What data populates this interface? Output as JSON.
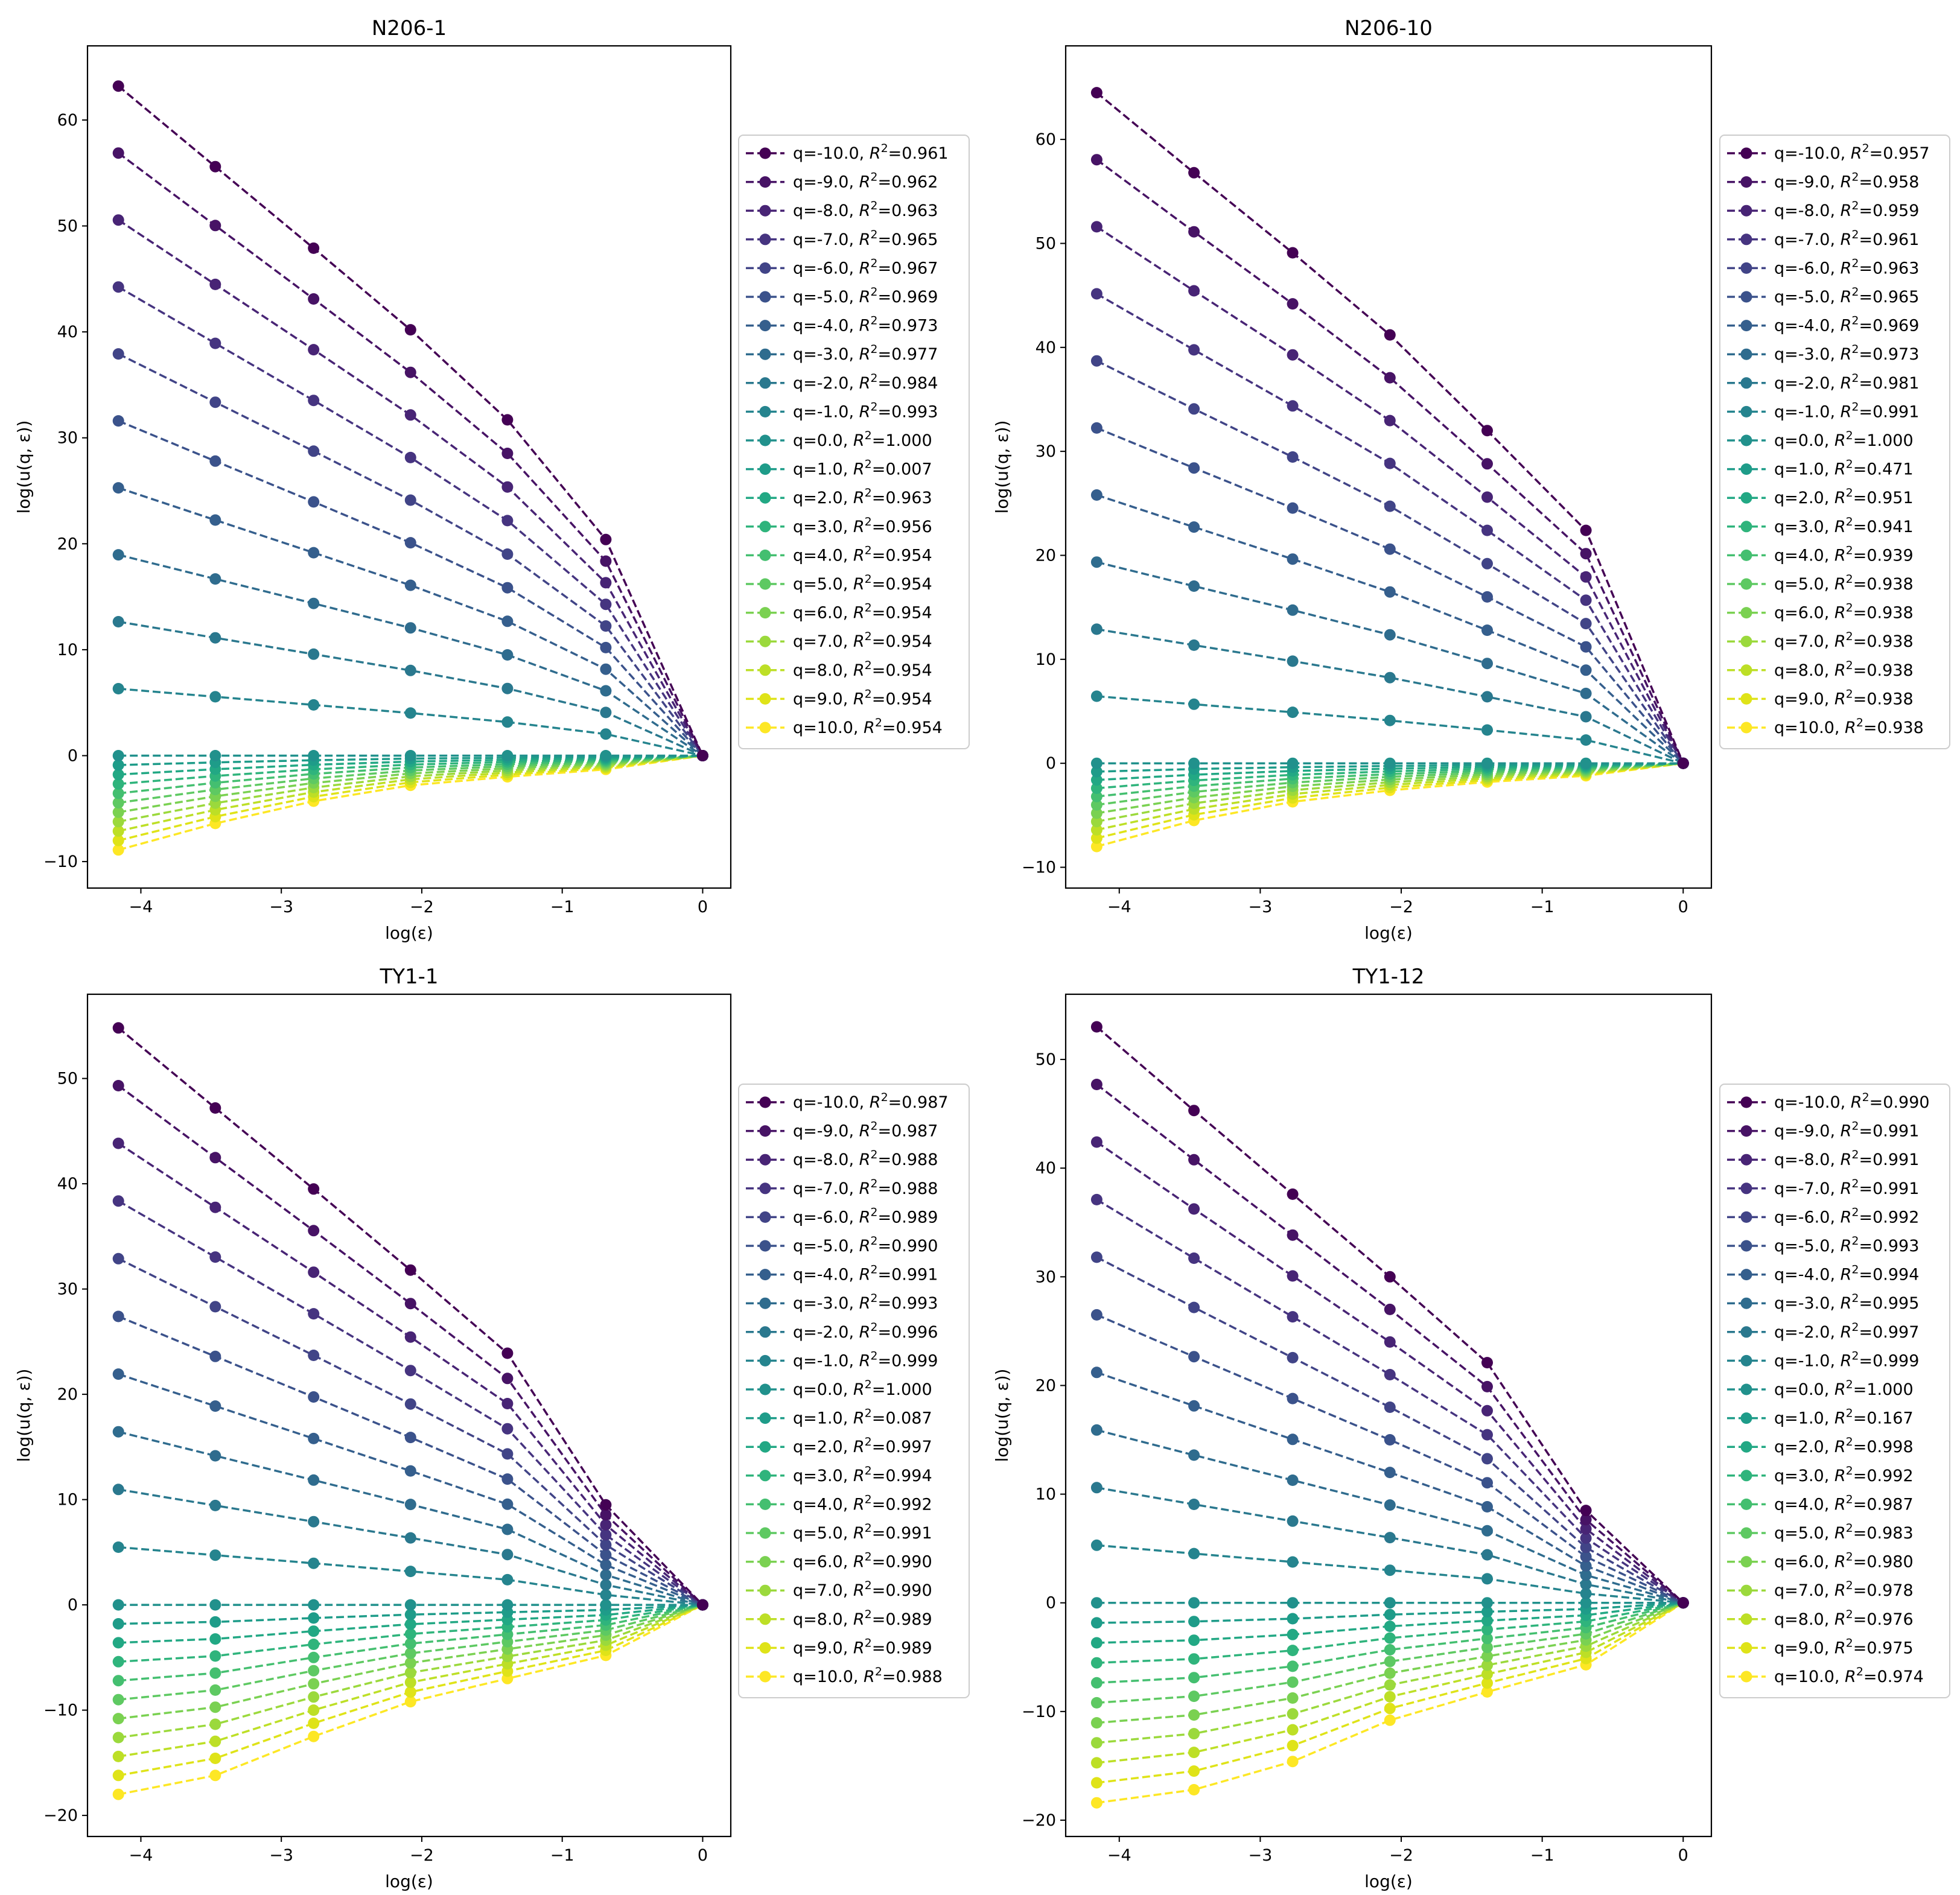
{
  "figure": {
    "description_free": true,
    "x": [
      -4.16,
      -3.47,
      -2.77,
      -2.08,
      -1.39,
      -0.69,
      0.0
    ],
    "q": [
      -10.0,
      -9.0,
      -8.0,
      -7.0,
      -6.0,
      -5.0,
      -4.0,
      -3.0,
      -2.0,
      -1.0,
      0.0,
      1.0,
      2.0,
      3.0,
      4.0,
      5.0,
      6.0,
      7.0,
      8.0,
      9.0,
      10.0
    ],
    "xlabel": "log(ε)",
    "ylabel": "log(u(q, ε))",
    "xticks": [
      -4,
      -3,
      -2,
      -1,
      0
    ],
    "viridis": [
      "#440154",
      "#471365",
      "#482475",
      "#463480",
      "#414487",
      "#3b528b",
      "#355f8d",
      "#2f6c8e",
      "#2a788e",
      "#25848e",
      "#21918c",
      "#1e9c89",
      "#22a884",
      "#2fb47c",
      "#44bf70",
      "#5ec962",
      "#7ad151",
      "#9bd93c",
      "#bddf26",
      "#dfe318",
      "#fde725"
    ]
  },
  "chart_data": [
    {
      "type": "line",
      "title": "N206-1",
      "xlabel": "log(ε)",
      "ylabel": "log(u(q, ε))",
      "xlim": [
        -4.38,
        0.2
      ],
      "ylim": [
        -12.5,
        67.0
      ],
      "yticks": [
        -10,
        0,
        10,
        20,
        30,
        40,
        50,
        60
      ],
      "x": [
        -4.16,
        -3.47,
        -2.77,
        -2.08,
        -1.39,
        -0.69,
        0.0
      ],
      "first_series": {
        "q": -10.0,
        "y": [
          63.2,
          55.6,
          47.9,
          40.2,
          31.7,
          20.4,
          0
        ]
      },
      "last_series": {
        "q": 10.0,
        "y": [
          -8.9,
          -6.4,
          -4.3,
          -2.8,
          -2.0,
          -1.3,
          0
        ]
      },
      "r2": [
        "0.961",
        "0.962",
        "0.963",
        "0.965",
        "0.967",
        "0.969",
        "0.973",
        "0.977",
        "0.984",
        "0.993",
        "1.000",
        "0.007",
        "0.963",
        "0.956",
        "0.954",
        "0.954",
        "0.954",
        "0.954",
        "0.954",
        "0.954",
        "0.954"
      ]
    },
    {
      "type": "line",
      "title": "N206-10",
      "xlabel": "log(ε)",
      "ylabel": "log(u(q, ε))",
      "xlim": [
        -4.38,
        0.2
      ],
      "ylim": [
        -12.0,
        69.0
      ],
      "yticks": [
        -10,
        0,
        10,
        20,
        30,
        40,
        50,
        60
      ],
      "x": [
        -4.16,
        -3.47,
        -2.77,
        -2.08,
        -1.39,
        -0.69,
        0.0
      ],
      "first_series": {
        "q": -10.0,
        "y": [
          64.5,
          56.8,
          49.1,
          41.2,
          32.0,
          22.4,
          0
        ]
      },
      "last_series": {
        "q": 10.0,
        "y": [
          -8.0,
          -5.5,
          -3.7,
          -2.6,
          -1.8,
          -1.2,
          0
        ]
      },
      "r2": [
        "0.957",
        "0.958",
        "0.959",
        "0.961",
        "0.963",
        "0.965",
        "0.969",
        "0.973",
        "0.981",
        "0.991",
        "1.000",
        "0.471",
        "0.951",
        "0.941",
        "0.939",
        "0.938",
        "0.938",
        "0.938",
        "0.938",
        "0.938",
        "0.938"
      ]
    },
    {
      "type": "line",
      "title": "TY1-1",
      "xlabel": "log(ε)",
      "ylabel": "log(u(q, ε))",
      "xlim": [
        -4.38,
        0.2
      ],
      "ylim": [
        -22.0,
        58.0
      ],
      "yticks": [
        -20,
        -10,
        0,
        10,
        20,
        30,
        40,
        50
      ],
      "x": [
        -4.16,
        -3.47,
        -2.77,
        -2.08,
        -1.39,
        -0.69,
        0.0
      ],
      "first_series": {
        "q": -10.0,
        "y": [
          54.8,
          47.2,
          39.5,
          31.8,
          23.9,
          9.5,
          0
        ]
      },
      "last_series": {
        "q": 10.0,
        "y": [
          -18.0,
          -16.2,
          -12.5,
          -9.2,
          -7.0,
          -4.8,
          0
        ]
      },
      "r2": [
        "0.987",
        "0.987",
        "0.988",
        "0.988",
        "0.989",
        "0.990",
        "0.991",
        "0.993",
        "0.996",
        "0.999",
        "1.000",
        "0.087",
        "0.997",
        "0.994",
        "0.992",
        "0.991",
        "0.990",
        "0.990",
        "0.989",
        "0.989",
        "0.988"
      ]
    },
    {
      "type": "line",
      "title": "TY1-12",
      "xlabel": "log(ε)",
      "ylabel": "log(u(q, ε))",
      "xlim": [
        -4.38,
        0.2
      ],
      "ylim": [
        -21.5,
        56.0
      ],
      "yticks": [
        -20,
        -10,
        0,
        10,
        20,
        30,
        40,
        50
      ],
      "x": [
        -4.16,
        -3.47,
        -2.77,
        -2.08,
        -1.39,
        -0.69,
        0.0
      ],
      "first_series": {
        "q": -10.0,
        "y": [
          53.0,
          45.3,
          37.6,
          30.0,
          22.1,
          8.5,
          0
        ]
      },
      "last_series": {
        "q": 10.0,
        "y": [
          -18.4,
          -17.2,
          -14.6,
          -10.8,
          -8.2,
          -5.7,
          0
        ]
      },
      "r2": [
        "0.990",
        "0.991",
        "0.991",
        "0.991",
        "0.992",
        "0.993",
        "0.994",
        "0.995",
        "0.997",
        "0.999",
        "1.000",
        "0.167",
        "0.998",
        "0.992",
        "0.987",
        "0.983",
        "0.980",
        "0.978",
        "0.976",
        "0.975",
        "0.974"
      ]
    }
  ]
}
